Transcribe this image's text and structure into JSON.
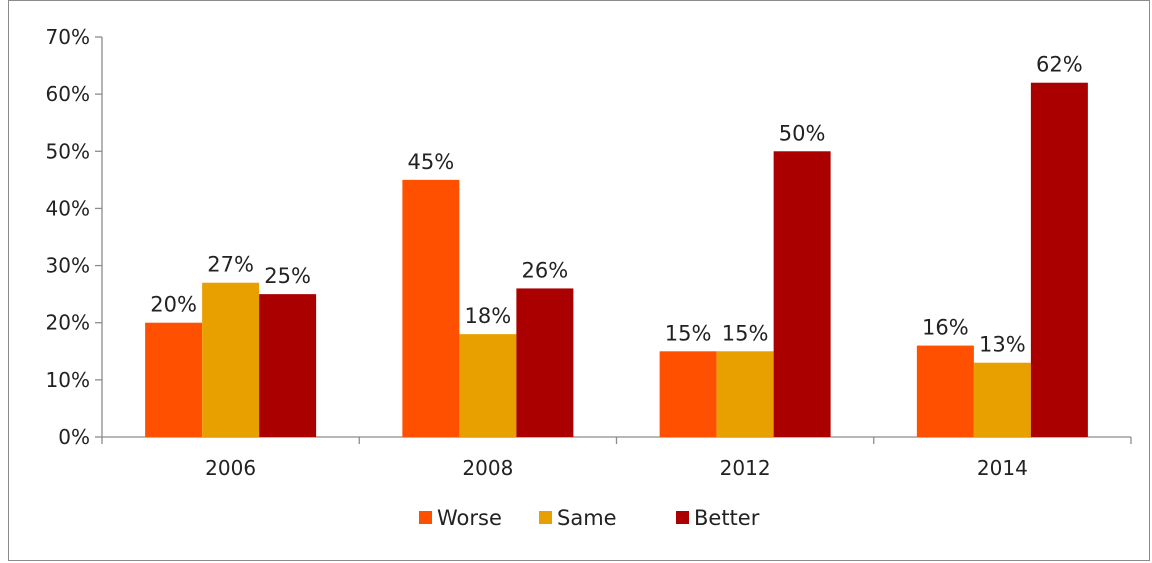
{
  "chart_data": {
    "type": "bar",
    "categories": [
      "2006",
      "2008",
      "2012",
      "2014"
    ],
    "series": [
      {
        "name": "Worse",
        "values": [
          20,
          45,
          15,
          16
        ],
        "color": "#ff5000"
      },
      {
        "name": "Same",
        "values": [
          27,
          18,
          15,
          13
        ],
        "color": "#e8a000"
      },
      {
        "name": "Better",
        "values": [
          25,
          26,
          50,
          62
        ],
        "color": "#aa0000"
      }
    ],
    "data_labels": [
      [
        "20%",
        "45%",
        "15%",
        "16%"
      ],
      [
        "27%",
        "18%",
        "15%",
        "13%"
      ],
      [
        "25%",
        "26%",
        "50%",
        "62%"
      ]
    ],
    "y_ticks": [
      "0%",
      "10%",
      "20%",
      "30%",
      "40%",
      "50%",
      "60%",
      "70%"
    ],
    "y_tick_values": [
      0,
      10,
      20,
      30,
      40,
      50,
      60,
      70
    ],
    "ylim": [
      0,
      70
    ],
    "title": "",
    "xlabel": "",
    "ylabel": "",
    "grid": false,
    "legend_position": "bottom"
  }
}
